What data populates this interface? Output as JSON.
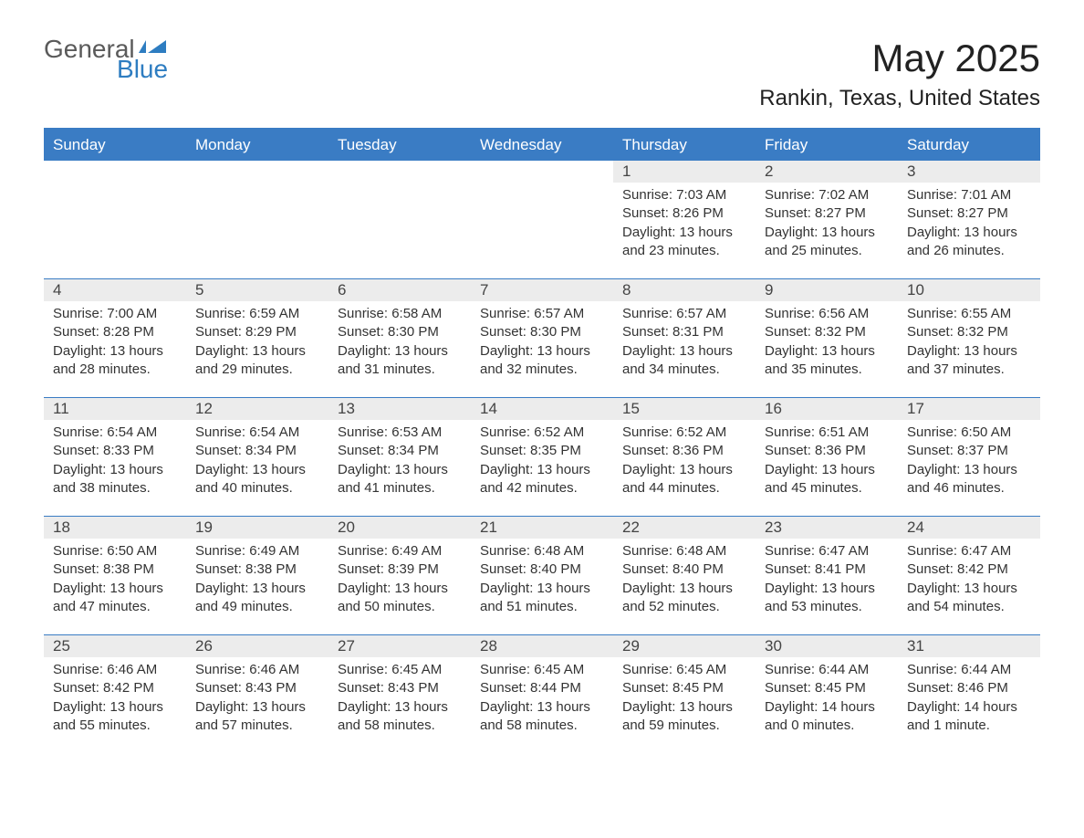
{
  "colors": {
    "accent": "#3a7cc4",
    "header_bg": "#3a7cc4",
    "header_fg": "#ffffff",
    "daynum_bg": "#ececec",
    "body_fg": "#333333",
    "page_bg": "#ffffff"
  },
  "logo": {
    "line1": "General",
    "line2": "Blue",
    "line1_color": "#5a5a5a",
    "line2_color": "#2e7dc1",
    "fontsize": 28
  },
  "title": "May 2025",
  "location": "Rankin, Texas, United States",
  "weekdays": [
    "Sunday",
    "Monday",
    "Tuesday",
    "Wednesday",
    "Thursday",
    "Friday",
    "Saturday"
  ],
  "calendar": {
    "leading_blanks": 4,
    "days": [
      {
        "n": 1,
        "sunrise": "7:03 AM",
        "sunset": "8:26 PM",
        "daylight": "13 hours and 23 minutes."
      },
      {
        "n": 2,
        "sunrise": "7:02 AM",
        "sunset": "8:27 PM",
        "daylight": "13 hours and 25 minutes."
      },
      {
        "n": 3,
        "sunrise": "7:01 AM",
        "sunset": "8:27 PM",
        "daylight": "13 hours and 26 minutes."
      },
      {
        "n": 4,
        "sunrise": "7:00 AM",
        "sunset": "8:28 PM",
        "daylight": "13 hours and 28 minutes."
      },
      {
        "n": 5,
        "sunrise": "6:59 AM",
        "sunset": "8:29 PM",
        "daylight": "13 hours and 29 minutes."
      },
      {
        "n": 6,
        "sunrise": "6:58 AM",
        "sunset": "8:30 PM",
        "daylight": "13 hours and 31 minutes."
      },
      {
        "n": 7,
        "sunrise": "6:57 AM",
        "sunset": "8:30 PM",
        "daylight": "13 hours and 32 minutes."
      },
      {
        "n": 8,
        "sunrise": "6:57 AM",
        "sunset": "8:31 PM",
        "daylight": "13 hours and 34 minutes."
      },
      {
        "n": 9,
        "sunrise": "6:56 AM",
        "sunset": "8:32 PM",
        "daylight": "13 hours and 35 minutes."
      },
      {
        "n": 10,
        "sunrise": "6:55 AM",
        "sunset": "8:32 PM",
        "daylight": "13 hours and 37 minutes."
      },
      {
        "n": 11,
        "sunrise": "6:54 AM",
        "sunset": "8:33 PM",
        "daylight": "13 hours and 38 minutes."
      },
      {
        "n": 12,
        "sunrise": "6:54 AM",
        "sunset": "8:34 PM",
        "daylight": "13 hours and 40 minutes."
      },
      {
        "n": 13,
        "sunrise": "6:53 AM",
        "sunset": "8:34 PM",
        "daylight": "13 hours and 41 minutes."
      },
      {
        "n": 14,
        "sunrise": "6:52 AM",
        "sunset": "8:35 PM",
        "daylight": "13 hours and 42 minutes."
      },
      {
        "n": 15,
        "sunrise": "6:52 AM",
        "sunset": "8:36 PM",
        "daylight": "13 hours and 44 minutes."
      },
      {
        "n": 16,
        "sunrise": "6:51 AM",
        "sunset": "8:36 PM",
        "daylight": "13 hours and 45 minutes."
      },
      {
        "n": 17,
        "sunrise": "6:50 AM",
        "sunset": "8:37 PM",
        "daylight": "13 hours and 46 minutes."
      },
      {
        "n": 18,
        "sunrise": "6:50 AM",
        "sunset": "8:38 PM",
        "daylight": "13 hours and 47 minutes."
      },
      {
        "n": 19,
        "sunrise": "6:49 AM",
        "sunset": "8:38 PM",
        "daylight": "13 hours and 49 minutes."
      },
      {
        "n": 20,
        "sunrise": "6:49 AM",
        "sunset": "8:39 PM",
        "daylight": "13 hours and 50 minutes."
      },
      {
        "n": 21,
        "sunrise": "6:48 AM",
        "sunset": "8:40 PM",
        "daylight": "13 hours and 51 minutes."
      },
      {
        "n": 22,
        "sunrise": "6:48 AM",
        "sunset": "8:40 PM",
        "daylight": "13 hours and 52 minutes."
      },
      {
        "n": 23,
        "sunrise": "6:47 AM",
        "sunset": "8:41 PM",
        "daylight": "13 hours and 53 minutes."
      },
      {
        "n": 24,
        "sunrise": "6:47 AM",
        "sunset": "8:42 PM",
        "daylight": "13 hours and 54 minutes."
      },
      {
        "n": 25,
        "sunrise": "6:46 AM",
        "sunset": "8:42 PM",
        "daylight": "13 hours and 55 minutes."
      },
      {
        "n": 26,
        "sunrise": "6:46 AM",
        "sunset": "8:43 PM",
        "daylight": "13 hours and 57 minutes."
      },
      {
        "n": 27,
        "sunrise": "6:45 AM",
        "sunset": "8:43 PM",
        "daylight": "13 hours and 58 minutes."
      },
      {
        "n": 28,
        "sunrise": "6:45 AM",
        "sunset": "8:44 PM",
        "daylight": "13 hours and 58 minutes."
      },
      {
        "n": 29,
        "sunrise": "6:45 AM",
        "sunset": "8:45 PM",
        "daylight": "13 hours and 59 minutes."
      },
      {
        "n": 30,
        "sunrise": "6:44 AM",
        "sunset": "8:45 PM",
        "daylight": "14 hours and 0 minutes."
      },
      {
        "n": 31,
        "sunrise": "6:44 AM",
        "sunset": "8:46 PM",
        "daylight": "14 hours and 1 minute."
      }
    ]
  },
  "labels": {
    "sunrise": "Sunrise:",
    "sunset": "Sunset:",
    "daylight": "Daylight:"
  }
}
